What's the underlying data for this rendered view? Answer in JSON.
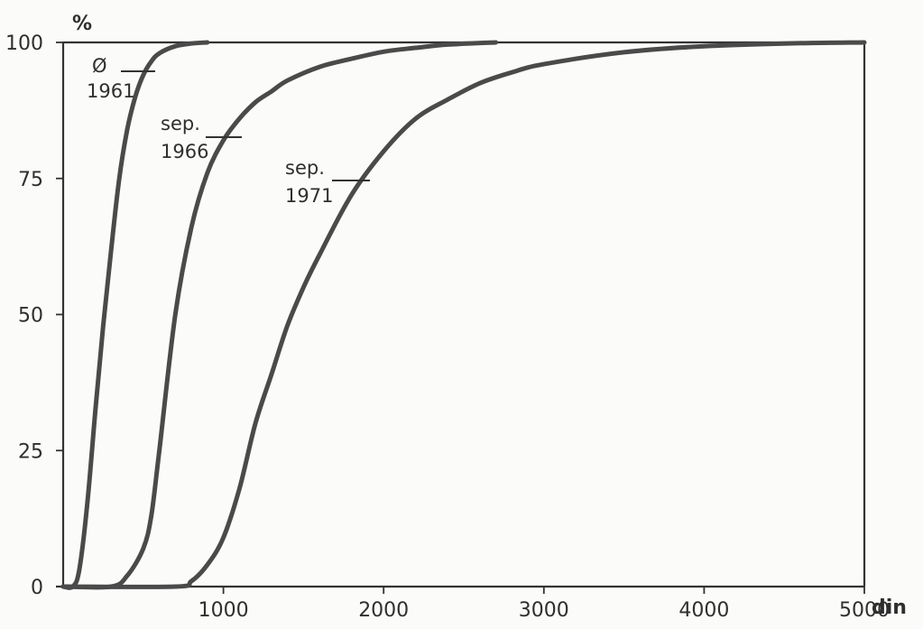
{
  "chart_data": {
    "type": "line",
    "xlabel": "din",
    "ylabel": "%",
    "xlim": [
      0,
      5000
    ],
    "ylim": [
      0,
      100
    ],
    "x_ticks": [
      1000,
      2000,
      3000,
      4000,
      5000
    ],
    "y_ticks": [
      0,
      25,
      50,
      75,
      100
    ],
    "grid": false,
    "legend": "none",
    "series": [
      {
        "name": "Ø 1961",
        "label_lines": [
          "Ø",
          "1961"
        ],
        "x": [
          0,
          60,
          100,
          150,
          200,
          250,
          300,
          350,
          400,
          450,
          500,
          550,
          600,
          700,
          800,
          900
        ],
        "values": [
          0,
          0,
          3,
          15,
          32,
          48,
          62,
          75,
          84,
          90,
          94,
          96.5,
          98,
          99.3,
          99.8,
          100
        ]
      },
      {
        "name": "sep. 1966",
        "label_lines": [
          "sep.",
          "1966"
        ],
        "x": [
          0,
          300,
          400,
          500,
          550,
          600,
          700,
          800,
          900,
          1000,
          1100,
          1200,
          1300,
          1400,
          1600,
          1800,
          2000,
          2200,
          2400,
          2700
        ],
        "values": [
          0,
          0,
          2,
          7,
          13,
          25,
          50,
          66,
          76,
          82,
          86,
          89,
          91,
          93,
          95.5,
          97,
          98.3,
          99,
          99.6,
          100
        ]
      },
      {
        "name": "sep. 1971",
        "label_lines": [
          "sep.",
          "1971"
        ],
        "x": [
          0,
          700,
          800,
          900,
          1000,
          1100,
          1200,
          1300,
          1400,
          1500,
          1600,
          1800,
          2000,
          2200,
          2400,
          2600,
          2800,
          3000,
          3500,
          4000,
          4500,
          5000
        ],
        "values": [
          0,
          0,
          1,
          4,
          9,
          18,
          30,
          39,
          48,
          55,
          61,
          72,
          80,
          86,
          89.5,
          92.5,
          94.5,
          96,
          98.2,
          99.3,
          99.8,
          100
        ]
      }
    ]
  }
}
